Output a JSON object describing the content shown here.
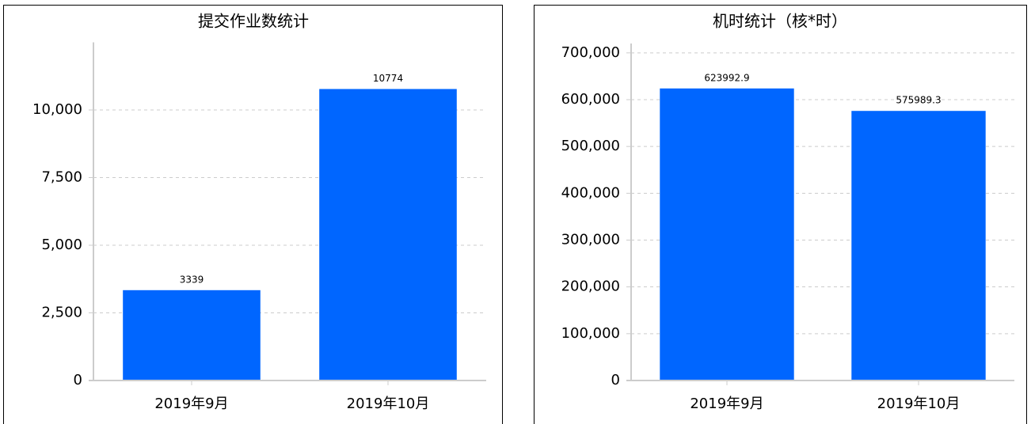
{
  "chart_data": [
    {
      "type": "bar",
      "title": "提交作业数统计",
      "categories": [
        "2019年9月",
        "2019年10月"
      ],
      "values": [
        3339,
        10774
      ],
      "value_labels": [
        "3339",
        "10774"
      ],
      "color": "#0066ff",
      "ylim": [
        0,
        12500
      ],
      "yticks": [
        0,
        {
          "value": 2500,
          "label": "2,500"
        },
        {
          "value": 5000,
          "label": "5,000"
        },
        {
          "value": 7500,
          "label": "7,500"
        },
        {
          "value": 10000,
          "label": "10,000"
        }
      ],
      "grid": true
    },
    {
      "type": "bar",
      "title": "机时统计（核*时）",
      "categories": [
        "2019年9月",
        "2019年10月"
      ],
      "values": [
        623992.9,
        575989.3
      ],
      "value_labels": [
        "623992.9",
        "575989.3"
      ],
      "color": "#0066ff",
      "ylim": [
        0,
        720000
      ],
      "yticks": [
        0,
        {
          "value": 100000,
          "label": "100,000"
        },
        {
          "value": 200000,
          "label": "200,000"
        },
        {
          "value": 300000,
          "label": "300,000"
        },
        {
          "value": 400000,
          "label": "400,000"
        },
        {
          "value": 500000,
          "label": "500,000"
        },
        {
          "value": 600000,
          "label": "600,000"
        },
        {
          "value": 700000,
          "label": "700,000"
        }
      ],
      "grid": true
    }
  ]
}
